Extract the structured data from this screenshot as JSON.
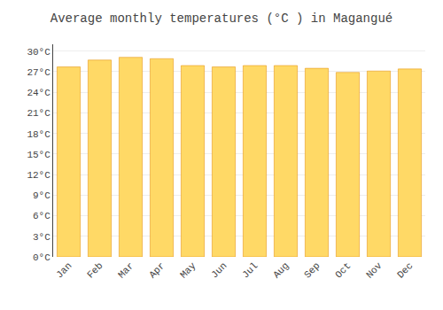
{
  "chart_data": {
    "type": "bar",
    "title": "Average monthly temperatures (°C ) in Magangué",
    "categories": [
      "Jan",
      "Feb",
      "Mar",
      "Apr",
      "May",
      "Jun",
      "Jul",
      "Aug",
      "Sep",
      "Oct",
      "Nov",
      "Dec"
    ],
    "values": [
      27.7,
      28.7,
      29.1,
      28.9,
      27.9,
      27.7,
      27.9,
      27.9,
      27.5,
      26.9,
      27.1,
      27.4
    ],
    "color": "#FFD966",
    "ylim": [
      0,
      31
    ],
    "yticks": [
      {
        "value": 0,
        "label": "0°C"
      },
      {
        "value": 3,
        "label": "3°C"
      },
      {
        "value": 6,
        "label": "6°C"
      },
      {
        "value": 9,
        "label": "9°C"
      },
      {
        "value": 12,
        "label": "12°C"
      },
      {
        "value": 15,
        "label": "15°C"
      },
      {
        "value": 18,
        "label": "18°C"
      },
      {
        "value": 21,
        "label": "21°C"
      },
      {
        "value": 24,
        "label": "24°C"
      },
      {
        "value": 27,
        "label": "27°C"
      },
      {
        "value": 30,
        "label": "30°C"
      }
    ],
    "grid": true
  }
}
